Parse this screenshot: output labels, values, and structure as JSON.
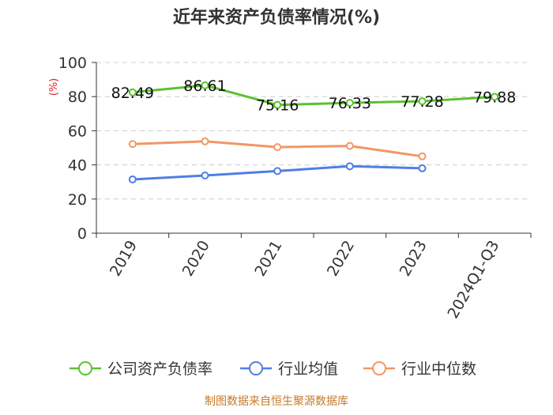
{
  "chart_data": {
    "type": "line",
    "title": "近年来资产负债率情况(%)",
    "ylabel": "(%)",
    "xlabel": "",
    "ylim": [
      0,
      100
    ],
    "yticks": [
      0,
      20,
      40,
      60,
      80,
      100
    ],
    "grid": true,
    "legend_position": "bottom",
    "categories": [
      "2019",
      "2020",
      "2021",
      "2022",
      "2023",
      "2024Q1-Q3"
    ],
    "series": [
      {
        "name": "公司资产负债率",
        "color": "#5cc12f",
        "values": [
          82.49,
          86.61,
          75.16,
          76.33,
          77.28,
          79.88
        ],
        "show_labels": true
      },
      {
        "name": "行业均值",
        "color": "#4f7fe3",
        "values": [
          31.5,
          33.8,
          36.4,
          39.2,
          38.0,
          null
        ],
        "show_labels": false
      },
      {
        "name": "行业中位数",
        "color": "#f29765",
        "values": [
          52.2,
          53.8,
          50.4,
          51.1,
          45.0,
          null
        ],
        "show_labels": false
      }
    ],
    "data_labels": [
      "82.49",
      "86.61",
      "75.16",
      "76.33",
      "77.28",
      "79.88"
    ],
    "source": "制图数据来自恒生聚源数据库"
  }
}
